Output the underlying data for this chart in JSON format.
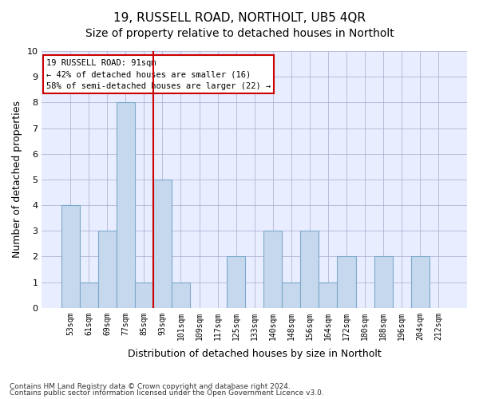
{
  "title": "19, RUSSELL ROAD, NORTHOLT, UB5 4QR",
  "subtitle": "Size of property relative to detached houses in Northolt",
  "xlabel": "Distribution of detached houses by size in Northolt",
  "ylabel": "Number of detached properties",
  "categories": [
    "53sqm",
    "61sqm",
    "69sqm",
    "77sqm",
    "85sqm",
    "93sqm",
    "101sqm",
    "109sqm",
    "117sqm",
    "125sqm",
    "133sqm",
    "140sqm",
    "148sqm",
    "156sqm",
    "164sqm",
    "172sqm",
    "180sqm",
    "188sqm",
    "196sqm",
    "204sqm",
    "212sqm"
  ],
  "values": [
    4,
    1,
    3,
    8,
    1,
    5,
    1,
    0,
    0,
    2,
    0,
    3,
    1,
    3,
    1,
    2,
    0,
    2,
    0,
    2,
    0
  ],
  "bar_color": "#c5d8ed",
  "bar_edge_color": "#7da8cc",
  "vline_x_index": 4.5,
  "vline_color": "#cc0000",
  "annotation_text": "19 RUSSELL ROAD: 91sqm\n← 42% of detached houses are smaller (16)\n58% of semi-detached houses are larger (22) →",
  "annotation_box_color": "white",
  "annotation_box_edge": "#cc0000",
  "ylim": [
    0,
    10
  ],
  "yticks": [
    0,
    1,
    2,
    3,
    4,
    5,
    6,
    7,
    8,
    9,
    10
  ],
  "grid_color": "#aaaacc",
  "plot_bg_color": "#e8eeff",
  "footer1": "Contains HM Land Registry data © Crown copyright and database right 2024.",
  "footer2": "Contains public sector information licensed under the Open Government Licence v3.0.",
  "title_fontsize": 11,
  "subtitle_fontsize": 10,
  "xlabel_fontsize": 9,
  "ylabel_fontsize": 9
}
